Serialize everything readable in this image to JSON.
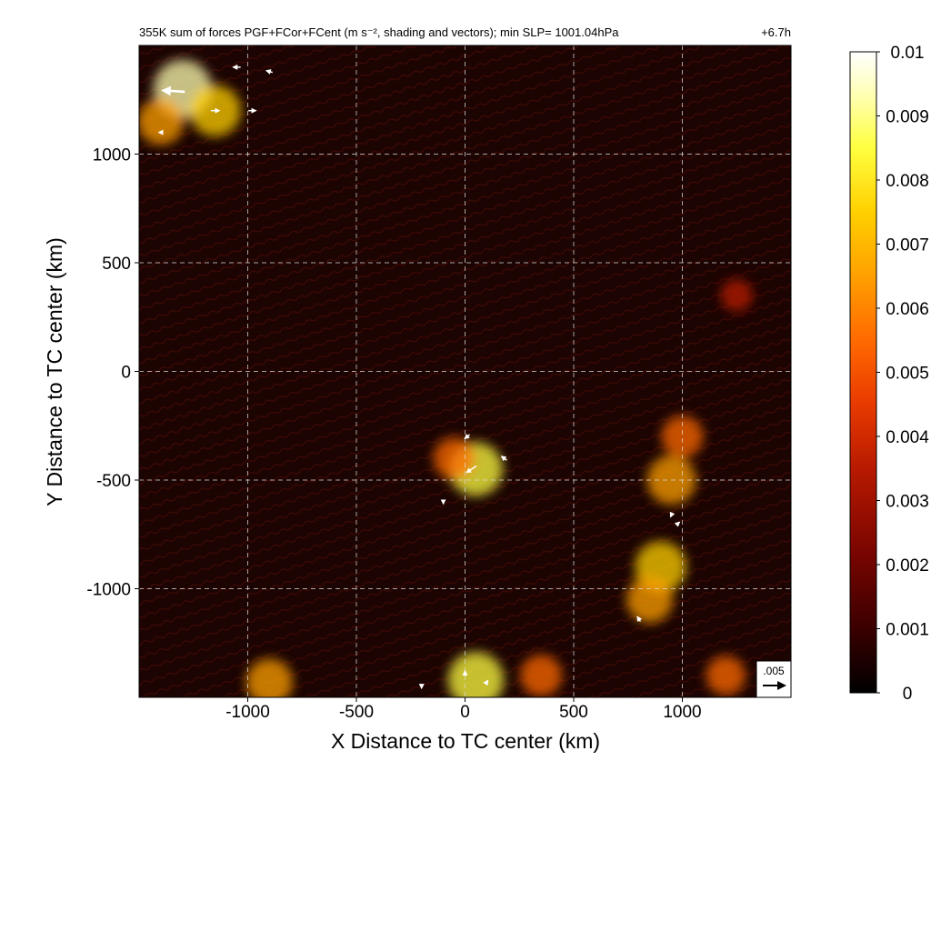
{
  "chart_data": {
    "type": "heatmap",
    "title": "355K sum of forces PGF+FCor+FCent (m s⁻², shading and vectors); min SLP= 1001.04hPa",
    "time_label": "+6.7h",
    "xlabel": "X Distance to TC center (km)",
    "ylabel": "Y Distance to TC center (km)",
    "xlim": [
      -1500,
      1500
    ],
    "ylim": [
      -1500,
      1500
    ],
    "x_ticks": [
      -1000,
      -500,
      0,
      500,
      1000
    ],
    "x_tick_labels": [
      "-1000",
      "-500",
      "0",
      "500",
      "1000"
    ],
    "y_ticks": [
      -1000,
      -500,
      0,
      500,
      1000
    ],
    "y_tick_labels": [
      "-1000",
      "-500",
      "0",
      "500",
      "1000"
    ],
    "grid": true,
    "colorbar": {
      "range": [
        0,
        0.01
      ],
      "ticks": [
        0,
        0.001,
        0.002,
        0.003,
        0.004,
        0.005,
        0.006,
        0.007,
        0.008,
        0.009,
        0.01
      ],
      "tick_labels": [
        "0",
        "0.001",
        "0.002",
        "0.003",
        "0.004",
        "0.005",
        "0.006",
        "0.007",
        "0.008",
        "0.009",
        "0.01"
      ],
      "colors": [
        "#000000",
        "#3a0000",
        "#7a0500",
        "#b81a00",
        "#e83a00",
        "#ff6a00",
        "#ffa000",
        "#ffd000",
        "#ffff40",
        "#ffffb0",
        "#ffffff"
      ]
    },
    "reference_vector": {
      "label": ".005",
      "value": 0.005
    },
    "hotspots": [
      {
        "x": -1300,
        "y": 1300,
        "v": 0.0085
      },
      {
        "x": -1150,
        "y": 1200,
        "v": 0.007
      },
      {
        "x": -1400,
        "y": 1150,
        "v": 0.006
      },
      {
        "x": 50,
        "y": -450,
        "v": 0.0075
      },
      {
        "x": -50,
        "y": -400,
        "v": 0.005
      },
      {
        "x": 900,
        "y": -900,
        "v": 0.007
      },
      {
        "x": 850,
        "y": -1050,
        "v": 0.006
      },
      {
        "x": 950,
        "y": -500,
        "v": 0.0065
      },
      {
        "x": 1000,
        "y": -300,
        "v": 0.005
      },
      {
        "x": 50,
        "y": -1420,
        "v": 0.008
      },
      {
        "x": -900,
        "y": -1430,
        "v": 0.006
      },
      {
        "x": 350,
        "y": -1400,
        "v": 0.005
      },
      {
        "x": 1200,
        "y": -1400,
        "v": 0.0045
      },
      {
        "x": 1250,
        "y": 350,
        "v": 0.003
      }
    ],
    "vectors": [
      {
        "x": -1340,
        "y": 1290,
        "u": -0.005,
        "v": 0.0003
      },
      {
        "x": -1050,
        "y": 1400,
        "u": -0.0017,
        "v": 0.0
      },
      {
        "x": -900,
        "y": 1380,
        "u": -0.0014,
        "v": 0.0004
      },
      {
        "x": -1150,
        "y": 1200,
        "u": 0.0019,
        "v": 0.0
      },
      {
        "x": -980,
        "y": 1200,
        "u": 0.0017,
        "v": 0.0
      },
      {
        "x": -1400,
        "y": 1100,
        "u": -0.0009,
        "v": 0.0
      },
      {
        "x": 30,
        "y": -450,
        "u": -0.0022,
        "v": -0.0015
      },
      {
        "x": 180,
        "y": -400,
        "u": -0.0012,
        "v": 0.0009
      },
      {
        "x": 10,
        "y": -300,
        "u": -0.0011,
        "v": -0.0009
      },
      {
        "x": -100,
        "y": -600,
        "u": 0.0,
        "v": -0.0009
      },
      {
        "x": 800,
        "y": -1140,
        "u": -0.0007,
        "v": 0.0011
      },
      {
        "x": 950,
        "y": -660,
        "u": -0.0004,
        "v": -0.0009
      },
      {
        "x": 980,
        "y": -700,
        "u": 0.0007,
        "v": 0.0006
      },
      {
        "x": 0,
        "y": -1390,
        "u": 0.0,
        "v": 0.0011
      },
      {
        "x": 100,
        "y": -1430,
        "u": 0.0005,
        "v": 0.0007
      },
      {
        "x": -200,
        "y": -1450,
        "u": 0.0,
        "v": -0.0008
      }
    ]
  }
}
